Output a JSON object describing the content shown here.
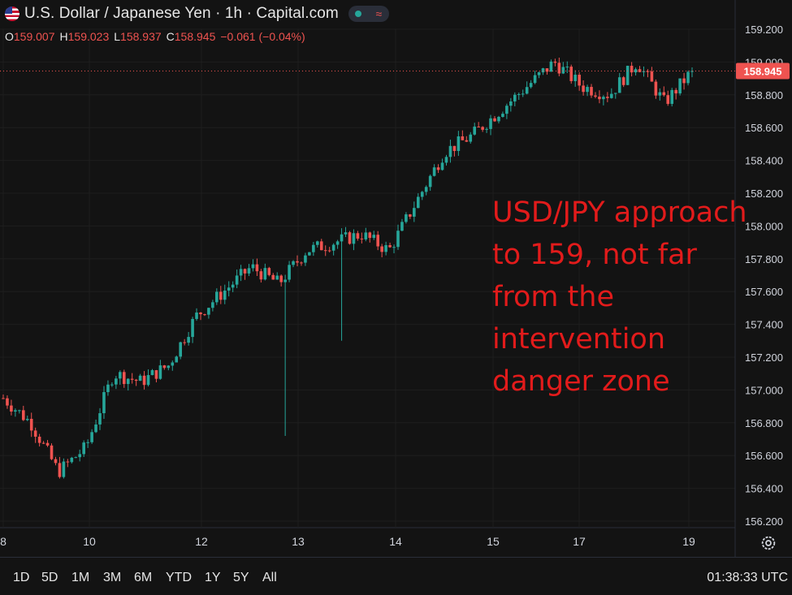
{
  "header": {
    "title": "U.S. Dollar / Japanese Yen · 1h · Capital.com",
    "ohlc": [
      {
        "key": "O",
        "value": "159.007"
      },
      {
        "key": "H",
        "value": "159.023"
      },
      {
        "key": "L",
        "value": "158.937"
      },
      {
        "key": "C",
        "value": "158.945"
      }
    ],
    "change": "−0.061 (−0.04%)"
  },
  "annotation": {
    "lines": [
      "USD/JPY approach",
      "to 159, not far",
      "from the",
      "intervention",
      "danger zone"
    ]
  },
  "price_label": "158.945",
  "bottom_bar": {
    "ranges": [
      "1D",
      "5D",
      "1M",
      "3M",
      "6M",
      "YTD",
      "1Y",
      "5Y",
      "All"
    ],
    "clock": "01:38:33 UTC"
  },
  "colors": {
    "up": "#26a69a",
    "down": "#ef5350",
    "background": "#131313",
    "annotation": "#e21b1b"
  },
  "chart_data": {
    "type": "candlestick",
    "symbol": "USD/JPY",
    "interval": "1h",
    "ylim": [
      156.2,
      159.2
    ],
    "y_ticks": [
      "159.200",
      "159.000",
      "158.800",
      "158.600",
      "158.400",
      "158.200",
      "158.000",
      "157.800",
      "157.600",
      "157.400",
      "157.200",
      "157.000",
      "156.800",
      "156.600",
      "156.400",
      "156.200"
    ],
    "x_ticks": [
      "8",
      "10",
      "12",
      "13",
      "14",
      "15",
      "17",
      "19"
    ],
    "last_price": 158.945,
    "grid": true,
    "waypoints": [
      {
        "x": "8",
        "close": 156.95
      },
      {
        "x": "",
        "close": 156.8
      },
      {
        "x": "",
        "close": 156.5
      },
      {
        "x": "10",
        "close": 156.65
      },
      {
        "x": "",
        "close": 157.1
      },
      {
        "x": "",
        "close": 157.05
      },
      {
        "x": "",
        "close": 157.15
      },
      {
        "x": "12",
        "close": 157.45
      },
      {
        "x": "",
        "close": 157.6
      },
      {
        "x": "",
        "close": 157.75
      },
      {
        "x": "13",
        "close": 157.65
      },
      {
        "x": "",
        "close": 157.85
      },
      {
        "x": "",
        "close": 157.9
      },
      {
        "x": "14",
        "close": 157.95
      },
      {
        "x": "",
        "close": 157.85
      },
      {
        "x": "",
        "close": 158.15
      },
      {
        "x": "15",
        "close": 158.45
      },
      {
        "x": "",
        "close": 158.55
      },
      {
        "x": "",
        "close": 158.7
      },
      {
        "x": "17",
        "close": 158.85
      },
      {
        "x": "",
        "close": 159.0
      },
      {
        "x": "",
        "close": 158.85
      },
      {
        "x": "",
        "close": 158.8
      },
      {
        "x": "",
        "close": 159.0
      },
      {
        "x": "",
        "close": 158.75
      },
      {
        "x": "19",
        "close": 158.945
      }
    ]
  }
}
